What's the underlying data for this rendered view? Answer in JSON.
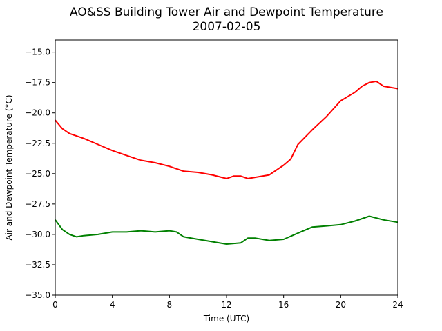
{
  "chart_data": {
    "type": "line",
    "title": "AO&SS Building Tower Air and Dewpoint Temperature",
    "subtitle": "2007-02-05",
    "xlabel": "Time (UTC)",
    "ylabel": "Air and Dewpoint Temperature (°C)",
    "xlim": [
      0,
      24
    ],
    "ylim": [
      -35.0,
      -14.0
    ],
    "xticks": [
      0,
      4,
      8,
      12,
      16,
      20,
      24
    ],
    "yticks": [
      -35.0,
      -32.5,
      -30.0,
      -27.5,
      -25.0,
      -22.5,
      -20.0,
      -17.5,
      -15.0
    ],
    "ytick_labels": [
      "−35.0",
      "−32.5",
      "−30.0",
      "−27.5",
      "−25.0",
      "−22.5",
      "−20.0",
      "−17.5",
      "−15.0"
    ],
    "grid": false,
    "series": [
      {
        "color": "#ff0000",
        "x": [
          0,
          0.5,
          1,
          1.5,
          2,
          3,
          4,
          5,
          6,
          7,
          8,
          9,
          10,
          11,
          12,
          12.5,
          13,
          13.5,
          14,
          15,
          16,
          16.5,
          17,
          18,
          19,
          20,
          21,
          21.5,
          22,
          22.5,
          23,
          24
        ],
        "values": [
          -20.6,
          -21.3,
          -21.7,
          -21.9,
          -22.1,
          -22.6,
          -23.1,
          -23.5,
          -23.9,
          -24.1,
          -24.4,
          -24.8,
          -24.9,
          -25.1,
          -25.4,
          -25.2,
          -25.2,
          -25.4,
          -25.3,
          -25.1,
          -24.3,
          -23.8,
          -22.6,
          -21.4,
          -20.3,
          -19.0,
          -18.3,
          -17.8,
          -17.5,
          -17.4,
          -17.8,
          -18.0
        ]
      },
      {
        "color": "#008000",
        "x": [
          0,
          0.5,
          1,
          1.5,
          2,
          3,
          4,
          5,
          6,
          7,
          8,
          8.5,
          9,
          10,
          11,
          12,
          13,
          13.5,
          14,
          15,
          16,
          17,
          18,
          19,
          20,
          21,
          22,
          23,
          24
        ],
        "values": [
          -28.8,
          -29.6,
          -30.0,
          -30.2,
          -30.1,
          -30.0,
          -29.8,
          -29.8,
          -29.7,
          -29.8,
          -29.7,
          -29.8,
          -30.2,
          -30.4,
          -30.6,
          -30.8,
          -30.7,
          -30.3,
          -30.3,
          -30.5,
          -30.4,
          -29.9,
          -29.4,
          -29.3,
          -29.2,
          -28.9,
          -28.5,
          -28.8,
          -29.0
        ]
      }
    ]
  }
}
